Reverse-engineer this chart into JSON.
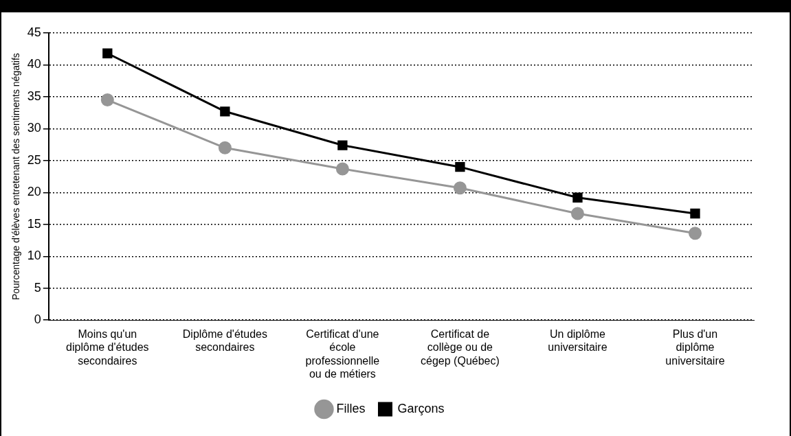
{
  "chart_data": {
    "type": "line",
    "ylabel": "Pourcentage d'élèves entretenant des sentiments négatifs",
    "categories": [
      "Moins qu'un diplôme d'études secondaires",
      "Diplôme d'études secondaires",
      "Certificat d'une école professionnelle ou de métiers",
      "Certificat de collège ou de cégep (Québec)",
      "Un diplôme universitaire",
      "Plus d'un diplôme universitaire"
    ],
    "series": [
      {
        "name": "Filles",
        "color": "#969696",
        "marker": "circle",
        "values": [
          34.5,
          27,
          23.7,
          20.7,
          16.7,
          13.6
        ]
      },
      {
        "name": "Garçons",
        "color": "#000000",
        "marker": "square",
        "values": [
          41.8,
          32.7,
          27.4,
          24,
          19.2,
          16.7
        ]
      }
    ],
    "ylim": [
      0,
      45
    ],
    "yticks": [
      0,
      5,
      10,
      15,
      20,
      25,
      30,
      35,
      40,
      45
    ],
    "grid": "y",
    "legend": "bottom",
    "line_style": "solid"
  }
}
